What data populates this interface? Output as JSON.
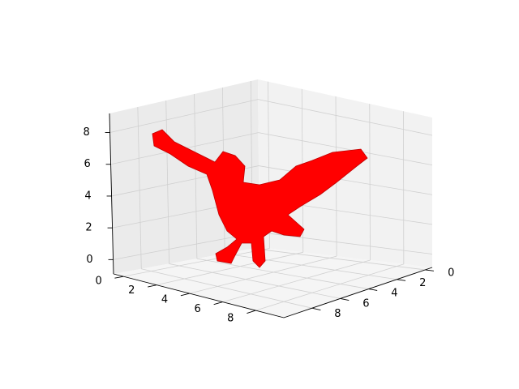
{
  "chart_data": {
    "type": "voxels3d",
    "xlim": [
      -0.6,
      9.7
    ],
    "ylim": [
      -0.5,
      10
    ],
    "zlim": [
      -0.9,
      9.2
    ],
    "xticks": [
      0,
      2,
      4,
      6,
      8
    ],
    "yticks": [
      0,
      2,
      4,
      6,
      8
    ],
    "zticks": [
      0,
      2,
      4,
      6,
      8
    ],
    "color": "#ff0000",
    "grid": true
  }
}
